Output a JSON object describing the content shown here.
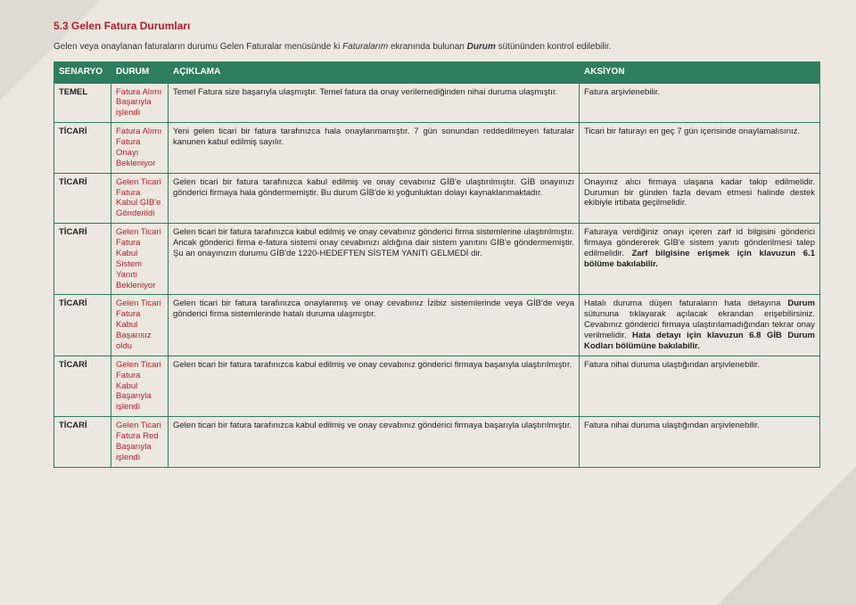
{
  "title": "5.3  Gelen Fatura Durumları",
  "intro_parts": [
    {
      "t": "Gelen veya onaylanan faturaların durumu Gelen Faturalar menüsünde ki "
    },
    {
      "t": "Faturalarım",
      "i": true
    },
    {
      "t": " ekranında bulunan "
    },
    {
      "t": "Durum",
      "i": true,
      "b": true
    },
    {
      "t": " sütününden kontrol edilebilir."
    }
  ],
  "headers": {
    "senaryo": "SENARYO",
    "durum": "DURUM",
    "aciklama": "AÇIKLAMA",
    "aksiyon": "AKSİYON"
  },
  "rows": [
    {
      "senaryo": "TEMEL",
      "durum": "Fatura Alımı Başarıyla işlendi",
      "aciklama": "Temel Fatura size başarıyla ulaşmıştır. Temel fatura da onay verilemediğinden nihai duruma ulaşmıştır.",
      "aksiyon": "Fatura arşivlenebilir."
    },
    {
      "senaryo": "TİCARİ",
      "durum": "Fatura Alımı Fatura Onayı Bekleniyor",
      "aciklama": "Yeni gelen ticari bir fatura tarafınızca hala onaylanmamıştır. 7 gün sonundan reddedilmeyen faturalar kanunen kabul edilmiş sayılır.",
      "aksiyon": "Ticari bir faturayı en geç 7 gün içerisinde onaylamalısınız."
    },
    {
      "senaryo": "TİCARİ",
      "durum": "Gelen Ticari Fatura Kabul GİB'e Gönderildi",
      "aciklama": "Gelen ticari bir fatura tarafınızca kabul edilmiş ve onay cevabınız GİB'e ulaştırılmıştır. GİB onayınızı gönderici firmaya hala göndermemiştir. Bu durum GİB'de ki yoğunluktan dolayı kaynaklanmaktadır.",
      "aksiyon": "Onayınız alıcı firmaya ulaşana kadar takip edilmelidir. Durumun bir günden fazla devam etmesi halinde destek ekibiyle irtibata geçilmelidir."
    },
    {
      "senaryo": "TİCARİ",
      "durum": "Gelen Ticari Fatura Kabul Sistem Yanıtı Bekleniyor",
      "aciklama": "Gelen ticari bir fatura tarafınızca kabul edilmiş ve onay cevabınız gönderici firma sistemlerine ulaştırılmıştır. Ancak gönderici firma e-fatura sistemi onay cevabınızı aldığına dair sistem yanıtını GİB'e göndermemiştir. Şu an onayınızın durumu GİB'de 1220-HEDEFTEN SİSTEM YANITI GELMEDİ dir.",
      "aksiyon_html": "Faturaya verdiğiniz onayı içeren zarf id bilgisini gönderici firmaya göndererek GİB'e sistem yanıtı gönderilmesi talep edilmelidir. <span class=\"b\">Zarf bilgisine erişmek için klavuzun 6.1 bölüme bakılabilir.</span>"
    },
    {
      "senaryo": "TİCARİ",
      "durum": "Gelen Ticari Fatura Kabul Başarısız oldu",
      "aciklama": "Gelen ticari bir fatura tarafınızca onaylanmış ve onay cevabınız İzibiz sistemlerinde veya GİB'de veya gönderici firma sistemlerinde hatalı duruma ulaşmıştır.",
      "aksiyon_html": "Hatalı duruma düşen faturaların hata detayına <span class=\"b\">Durum</span> sütununa tıklayarak açılacak ekrandan erişebilirsiniz. Cevabınız gönderici firmaya ulaştırılamadığından tekrar onay verilmelidir. <span class=\"b\">Hata detayı için klavuzun 6.8 GİB Durum Kodları bölümüne bakılabilir.</span>"
    },
    {
      "senaryo": "TİCARİ",
      "durum": "Gelen Ticari Fatura Kabul Başarıyla işlendi",
      "aciklama": "Gelen ticari bir fatura tarafınızca kabul edilmiş ve onay cevabınız gönderici firmaya başarıyla ulaştırılmıştır.",
      "aksiyon": "Fatura nihai duruma ulaştığından arşivlenebilir."
    },
    {
      "senaryo": "TİCARİ",
      "durum": "Gelen Ticari Fatura Red Başarıyla işlendi",
      "aciklama": "Gelen ticari bir fatura tarafınızca kabul edilmiş ve onay cevabınız gönderici firmaya başarıyla ulaştırılmıştır.",
      "aksiyon": "Fatura nihai duruma ulaştığından arşivlenebilir."
    }
  ],
  "colors": {
    "header_bg": "#2e7d5e",
    "accent": "#b01c2e",
    "page_bg": "#ece8df"
  }
}
